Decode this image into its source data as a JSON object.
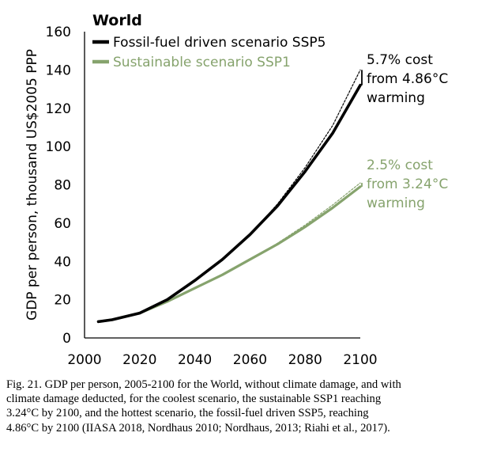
{
  "chart_data": {
    "type": "line",
    "title": "World",
    "xlabel": "",
    "ylabel": "GDP per person, thousand US$2005 PPP",
    "xlim": [
      2000,
      2100
    ],
    "ylim": [
      0,
      160
    ],
    "xticks": [
      2000,
      2020,
      2040,
      2060,
      2080,
      2100
    ],
    "yticks": [
      0,
      20,
      40,
      60,
      80,
      100,
      120,
      140,
      160
    ],
    "xtick_labels": [
      "2000",
      "2020",
      "2040",
      "2060",
      "2080",
      "2100"
    ],
    "ytick_labels": [
      "0",
      "20",
      "40",
      "60",
      "80",
      "100",
      "120",
      "140",
      "160"
    ],
    "grid": false,
    "legend_position": "top-left",
    "x": [
      2005,
      2010,
      2020,
      2030,
      2040,
      2050,
      2060,
      2070,
      2080,
      2090,
      2100
    ],
    "series": [
      {
        "name": "Fossil-fuel driven scenario SSP5",
        "variant": "with climate damage",
        "color": "#000000",
        "values": [
          8.5,
          9.5,
          13,
          20,
          30,
          41,
          54,
          69,
          87,
          107,
          132
        ]
      },
      {
        "name": "Fossil-fuel driven scenario SSP5 (without climate damage)",
        "variant": "without climate damage",
        "color": "#000000",
        "dashed": true,
        "values": [
          8.5,
          9.5,
          13,
          20,
          30,
          41,
          54,
          70,
          89,
          111,
          140
        ]
      },
      {
        "name": "Sustainable scenario SSP1",
        "variant": "with climate damage",
        "color": "#86a36d",
        "values": [
          8.5,
          9.5,
          13,
          19,
          26,
          33,
          41,
          49,
          58,
          68,
          79
        ]
      },
      {
        "name": "Sustainable scenario SSP1 (without climate damage)",
        "variant": "without climate damage",
        "color": "#86a36d",
        "dashed": true,
        "values": [
          8.5,
          9.5,
          13,
          19,
          26,
          33,
          41,
          49.5,
          59,
          69.5,
          81
        ]
      }
    ],
    "legend": {
      "title": "World",
      "entries": [
        {
          "label": "Fossil-fuel driven scenario SSP5",
          "color": "#000000"
        },
        {
          "label": "Sustainable scenario SSP1",
          "color": "#86a36d"
        }
      ]
    },
    "annotations": [
      {
        "id": "ssp5",
        "lines": [
          "5.7% cost",
          "from 4.86°C",
          "warming"
        ],
        "color": "#000000",
        "x": 2100,
        "range": [
          132,
          140
        ]
      },
      {
        "id": "ssp1",
        "lines": [
          "2.5% cost",
          "from 3.24°C",
          "warming"
        ],
        "color": "#86a36d",
        "x": 2100,
        "range": [
          79,
          81
        ]
      }
    ]
  },
  "caption": {
    "lines": [
      "Fig. 21. GDP per person, 2005-2100 for the World, without climate damage, and with",
      "climate damage deducted, for the coolest scenario, the sustainable SSP1 reaching",
      "3.24°C by 2100, and the hottest scenario, the fossil-fuel driven SSP5, reaching",
      "4.86°C by 2100 (IIASA 2018, Nordhaus 2010; Nordhaus, 2013; Riahi et al., 2017)."
    ]
  }
}
